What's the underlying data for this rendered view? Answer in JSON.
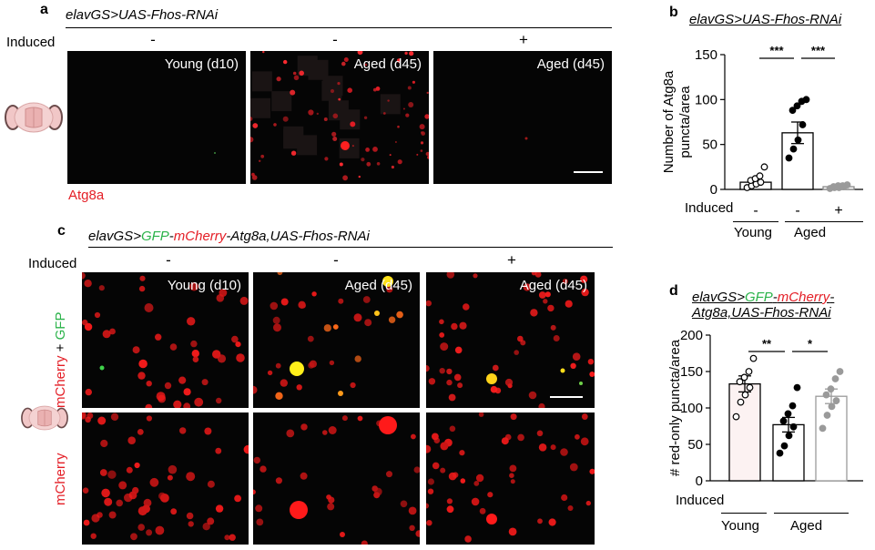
{
  "panel_a": {
    "letter": "a",
    "genotype": "elavGS>UAS-Fhos-RNAi",
    "induced_label": "Induced",
    "conditions": [
      {
        "induced": "-",
        "caption": "Young (d10)"
      },
      {
        "induced": "-",
        "caption": "Aged (d45)"
      },
      {
        "induced": "+",
        "caption": "Aged (d45)"
      }
    ],
    "stain_label": "Atg8a"
  },
  "panel_b": {
    "letter": "b",
    "genotype": "elavGS>UAS-Fhos-RNAi",
    "induced_label": "Induced",
    "group_labels": [
      "Young",
      "Aged"
    ]
  },
  "panel_c": {
    "letter": "c",
    "genotype_parts": {
      "prefix": "elavGS>",
      "gfp": "GFP",
      "dash": "-",
      "mcherry": "mCherry",
      "suffix": "-Atg8a,UAS-Fhos-RNAi"
    },
    "induced_label": "Induced",
    "conditions": [
      {
        "induced": "-",
        "caption": "Young (d10)"
      },
      {
        "induced": "-",
        "caption": "Aged (d45)"
      },
      {
        "induced": "+",
        "caption": "Aged (d45)"
      }
    ],
    "row_labels": {
      "merge_red": "mCherry",
      "plus": " + ",
      "merge_green": "GFP",
      "single": "mCherry"
    }
  },
  "panel_d": {
    "letter": "d",
    "genotype_line1": {
      "prefix": "elavGS>",
      "gfp": "GFP",
      "dash": "-",
      "mcherry": "mCherry",
      "end": "-"
    },
    "genotype_line2": "Atg8a,UAS-Fhos-RNAi",
    "induced_label": "Induced",
    "group_labels": [
      "Young",
      "Aged"
    ]
  },
  "colors": {
    "red": "#e41e26",
    "green": "#2bb34a",
    "gray": "#9a9a9a",
    "black": "#000000",
    "d_bar_fill": "#fcf2f2"
  },
  "chart_data": [
    {
      "type": "bar",
      "panel": "b",
      "ylabel": "Number of Atg8a\npuncta/area",
      "ylim": [
        0,
        150
      ],
      "yticks": [
        0,
        50,
        100,
        150
      ],
      "categories": [
        "Young -",
        "Aged -",
        "Aged +"
      ],
      "induced": [
        "-",
        "-",
        "+"
      ],
      "values": [
        8,
        63,
        3
      ],
      "sem": [
        3,
        12,
        1
      ],
      "points": [
        [
          2,
          4,
          6,
          8,
          10,
          12,
          15,
          25
        ],
        [
          35,
          45,
          55,
          72,
          88,
          93,
          98,
          100
        ],
        [
          1,
          2,
          2,
          3,
          3,
          4,
          4,
          5
        ]
      ],
      "significance": [
        {
          "from": 0,
          "to": 1,
          "label": "***"
        },
        {
          "from": 1,
          "to": 2,
          "label": "***"
        }
      ]
    },
    {
      "type": "bar",
      "panel": "d",
      "ylabel": "# red-only puncta/area",
      "ylim": [
        0,
        200
      ],
      "yticks": [
        0,
        50,
        100,
        150,
        200
      ],
      "categories": [
        "Young -",
        "Aged -",
        "Aged +"
      ],
      "induced": [
        "-",
        "-",
        "+"
      ],
      "values": [
        133,
        77,
        116
      ],
      "sem": [
        11,
        10,
        10
      ],
      "points": [
        [
          88,
          108,
          118,
          128,
          136,
          142,
          150,
          168
        ],
        [
          38,
          48,
          62,
          74,
          82,
          92,
          103,
          128
        ],
        [
          72,
          90,
          102,
          110,
          118,
          126,
          140,
          150
        ]
      ],
      "significance": [
        {
          "from": 0,
          "to": 1,
          "label": "**"
        },
        {
          "from": 1,
          "to": 2,
          "label": "*"
        }
      ]
    }
  ]
}
